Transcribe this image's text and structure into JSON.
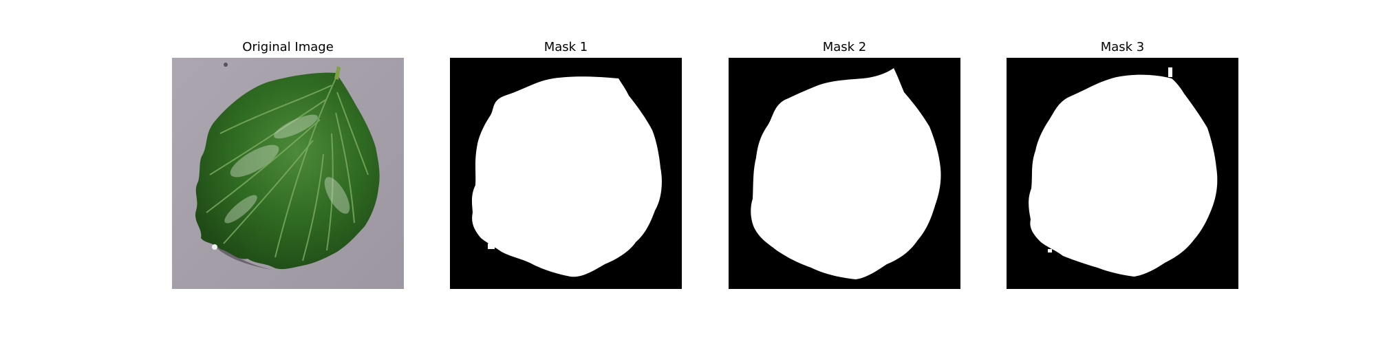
{
  "figure": {
    "panels": [
      {
        "title": "Original Image",
        "kind": "photo",
        "subject": "leaf"
      },
      {
        "title": "Mask 1",
        "kind": "mask"
      },
      {
        "title": "Mask 2",
        "kind": "mask"
      },
      {
        "title": "Mask 3",
        "kind": "mask"
      }
    ],
    "colors": {
      "background": "#ffffff",
      "mask_background": "#000000",
      "mask_foreground": "#ffffff",
      "ground": "#a49ea8",
      "leaf_dark": "#1f4a16",
      "leaf_mid": "#2f6a22",
      "leaf_light": "#4e8a3a",
      "leaf_highlight": "#c9d8c0"
    }
  }
}
